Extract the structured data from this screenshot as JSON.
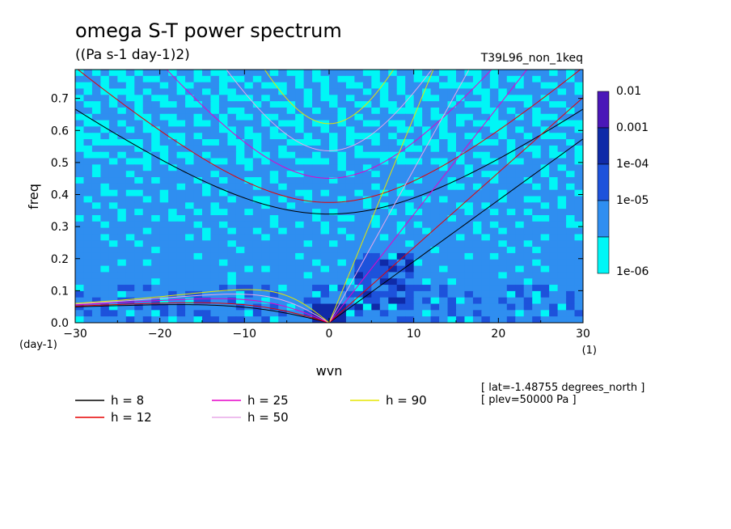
{
  "chart_data": {
    "type": "heatmap",
    "title": "omega S-T power spectrum",
    "subtitle": "((Pa s-1 day-1)2)",
    "dataset_label": "T39L96_non_1keq",
    "xlabel": "wvn",
    "ylabel": "freq",
    "x_unit": "(1)",
    "y_unit": "(day-1)",
    "xlim": [
      -30,
      30
    ],
    "ylim": [
      0,
      0.79
    ],
    "x_ticks": [
      -30,
      -20,
      -10,
      0,
      10,
      20,
      30
    ],
    "x_tick_labels": [
      "−30",
      "−20",
      "−10",
      "0",
      "10",
      "20",
      "30"
    ],
    "y_ticks": [
      0.0,
      0.1,
      0.2,
      0.3,
      0.4,
      0.5,
      0.6,
      0.7
    ],
    "y_tick_labels": [
      "0.0",
      "0.1",
      "0.2",
      "0.3",
      "0.4",
      "0.5",
      "0.6",
      "0.7"
    ],
    "colorbar": {
      "levels": [
        "0.01",
        "0.001",
        "1e-04",
        "1e-05",
        "1e-06"
      ],
      "colors": [
        "#4a17b8",
        "#0f2aa8",
        "#1d52db",
        "#2f8ef0",
        "#00f6f6"
      ]
    },
    "dispersion_curves": [
      {
        "h": 8,
        "label": "h =  8",
        "color": "#000000"
      },
      {
        "h": 12,
        "label": "h = 12",
        "color": "#e60000"
      },
      {
        "h": 25,
        "label": "h = 25",
        "color": "#e600c8"
      },
      {
        "h": 50,
        "label": "h = 50",
        "color": "#e8a8e8"
      },
      {
        "h": 90,
        "label": "h = 90",
        "color": "#e6e600"
      }
    ],
    "annotations": [
      "[ lat=-1.48755 degrees_north ]",
      "[ plev=50000 Pa ]"
    ]
  }
}
